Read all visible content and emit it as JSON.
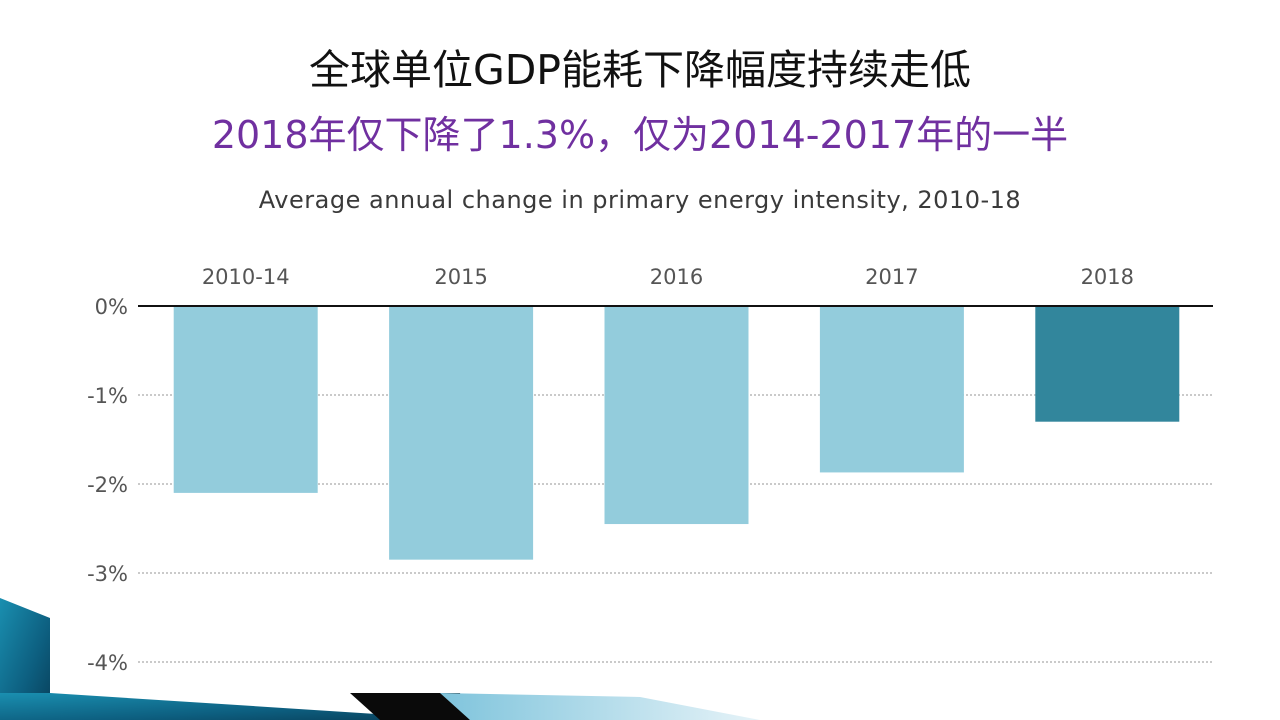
{
  "slide": {
    "title": "全球单位GDP能耗下降幅度持续走低",
    "subtitle": "2018年仅下降了1.3%，仅为2014-2017年的一半"
  },
  "colors": {
    "bar_default": "#93ccdc",
    "bar_highlight": "#32869c",
    "subtitle": "#7030a0",
    "axis": "#111111",
    "gridline": "#aaaaaa"
  },
  "chart_data": {
    "type": "bar",
    "title": "Average annual change in primary energy intensity, 2010-18",
    "categories": [
      "2010-14",
      "2015",
      "2016",
      "2017",
      "2018"
    ],
    "values": [
      -2.1,
      -2.85,
      -2.45,
      -1.87,
      -1.3
    ],
    "highlight_index": 4,
    "xlabel": "",
    "ylabel": "",
    "ylim": [
      -4,
      0
    ],
    "yticks": [
      0,
      -1,
      -2,
      -3,
      -4
    ],
    "ytick_labels": [
      "0%",
      "-1%",
      "-2%",
      "-3%",
      "-4%"
    ],
    "x_axis_position": "top",
    "grid": true
  }
}
